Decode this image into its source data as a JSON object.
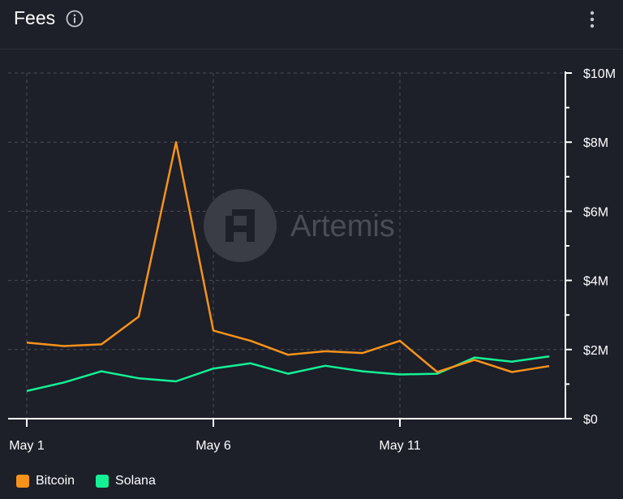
{
  "header": {
    "title": "Fees"
  },
  "icons": {
    "info": "info-icon",
    "menu": "more-vertical-icon",
    "watermark": "artemis-logo"
  },
  "watermark_text": "Artemis",
  "colors": {
    "background": "#1d1f29",
    "bitcoin": "#f7931a",
    "solana": "#14f195",
    "grid": "#4a4d57",
    "axis": "#ffffff",
    "watermark": "#4a4c56"
  },
  "chart_data": {
    "type": "line",
    "x": [
      "May 1",
      "May 2",
      "May 3",
      "May 4",
      "May 5",
      "May 6",
      "May 7",
      "May 8",
      "May 9",
      "May 10",
      "May 11",
      "May 12",
      "May 13",
      "May 14",
      "May 15"
    ],
    "xticks": [
      "May 1",
      "May 6",
      "May 11"
    ],
    "yticks": [
      "$0",
      "$2M",
      "$4M",
      "$6M",
      "$8M",
      "$10M"
    ],
    "ylim": [
      0,
      10
    ],
    "yunit": "M",
    "y_axis_position": "right",
    "grid": true,
    "legend_position": "bottom-left",
    "series": [
      {
        "name": "Bitcoin",
        "color": "#f7931a",
        "values": [
          2.2,
          2.1,
          2.15,
          2.95,
          8.0,
          2.55,
          2.25,
          1.85,
          1.95,
          1.9,
          2.25,
          1.35,
          1.7,
          1.35,
          1.52
        ]
      },
      {
        "name": "Solana",
        "color": "#14f195",
        "values": [
          0.8,
          1.05,
          1.37,
          1.17,
          1.08,
          1.45,
          1.6,
          1.3,
          1.53,
          1.37,
          1.28,
          1.3,
          1.77,
          1.65,
          1.8
        ]
      }
    ]
  }
}
